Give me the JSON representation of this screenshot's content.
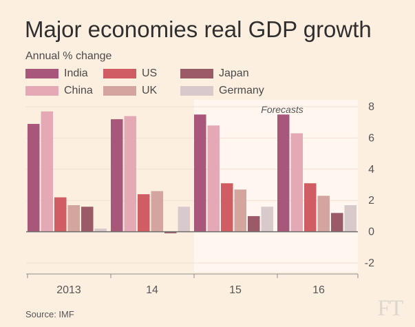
{
  "chart_data": {
    "type": "bar",
    "title": "Major economies real GDP growth",
    "subtitle": "Annual % change",
    "categories": [
      "2013",
      "14",
      "15",
      "16"
    ],
    "series": [
      {
        "name": "India",
        "color": "#a8577a",
        "values": [
          6.9,
          7.2,
          7.5,
          7.5
        ]
      },
      {
        "name": "China",
        "color": "#e4a9b5",
        "values": [
          7.7,
          7.4,
          6.8,
          6.3
        ]
      },
      {
        "name": "US",
        "color": "#d05d63",
        "values": [
          2.2,
          2.4,
          3.1,
          3.1
        ]
      },
      {
        "name": "UK",
        "color": "#d4a59f",
        "values": [
          1.7,
          2.6,
          2.7,
          2.3
        ]
      },
      {
        "name": "Japan",
        "color": "#9a5b67",
        "values": [
          1.6,
          -0.1,
          1.0,
          1.2
        ]
      },
      {
        "name": "Germany",
        "color": "#d8c9cd",
        "values": [
          0.2,
          1.6,
          1.6,
          1.7
        ]
      }
    ],
    "ylim": [
      -2,
      8
    ],
    "yticks": [
      "8",
      "6",
      "4",
      "2",
      "0",
      "-2"
    ],
    "forecast_label": "Forecasts",
    "forecast_categories": [
      "15",
      "16"
    ],
    "source": "Source: IMF"
  },
  "branding": {
    "logo": "FT"
  }
}
